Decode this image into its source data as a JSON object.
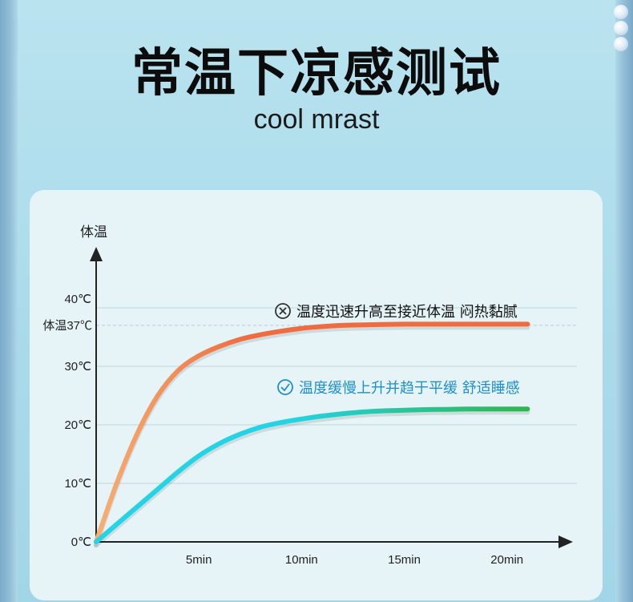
{
  "header": {
    "title": "常温下凉感测试",
    "subtitle": "cool mrast"
  },
  "colors": {
    "orange_start": "#f6b074",
    "orange_end": "#ee6c3f",
    "green_start": "#23d3e6",
    "green_end": "#2fb64c",
    "bad_icon": "#333333",
    "good_icon": "#1f8fc9",
    "good_text": "#1f8fc9"
  },
  "chart_data": {
    "type": "line",
    "ylabel": "体温",
    "xlim": [
      0,
      22
    ],
    "ylim": [
      0,
      40
    ],
    "x_ticks": [
      {
        "value": 5,
        "label": "5min"
      },
      {
        "value": 10,
        "label": "10min"
      },
      {
        "value": 15,
        "label": "15min"
      },
      {
        "value": 20,
        "label": "20min"
      }
    ],
    "y_ticks": [
      {
        "value": 0,
        "label": "0℃"
      },
      {
        "value": 10,
        "label": "10℃"
      },
      {
        "value": 20,
        "label": "20℃"
      },
      {
        "value": 30,
        "label": "30℃"
      },
      {
        "value": 40,
        "label": "40℃"
      }
    ],
    "reference_line": {
      "value": 37,
      "label": "体温37℃"
    },
    "grid": true,
    "series": [
      {
        "key": "normal",
        "x": [
          0,
          1,
          2,
          3,
          4,
          5,
          6,
          7,
          8,
          9,
          10,
          11,
          12,
          13,
          14,
          15,
          16,
          17,
          18,
          19,
          20,
          21
        ],
        "y": [
          0,
          10,
          18.5,
          25,
          29.3,
          31.8,
          33.4,
          34.6,
          35.4,
          36.0,
          36.5,
          36.8,
          37.0,
          37.1,
          37.15,
          37.2,
          37.2,
          37.2,
          37.2,
          37.2,
          37.2,
          37.2
        ],
        "annotation": "温度迅速升高至接近体温 闷热黏腻",
        "annotation_icon": "cross-circle-icon"
      },
      {
        "key": "cool",
        "x": [
          0,
          1,
          2,
          3,
          4,
          5,
          6,
          7,
          8,
          9,
          10,
          11,
          12,
          13,
          14,
          15,
          16,
          17,
          18,
          19,
          20,
          21
        ],
        "y": [
          0,
          3,
          6,
          9,
          12,
          14.7,
          16.8,
          18.4,
          19.6,
          20.4,
          21.0,
          21.5,
          21.9,
          22.2,
          22.4,
          22.5,
          22.6,
          22.65,
          22.7,
          22.7,
          22.7,
          22.7
        ],
        "annotation": "温度缓慢上升并趋于平缓 舒适睡感",
        "annotation_icon": "check-circle-icon"
      }
    ]
  }
}
